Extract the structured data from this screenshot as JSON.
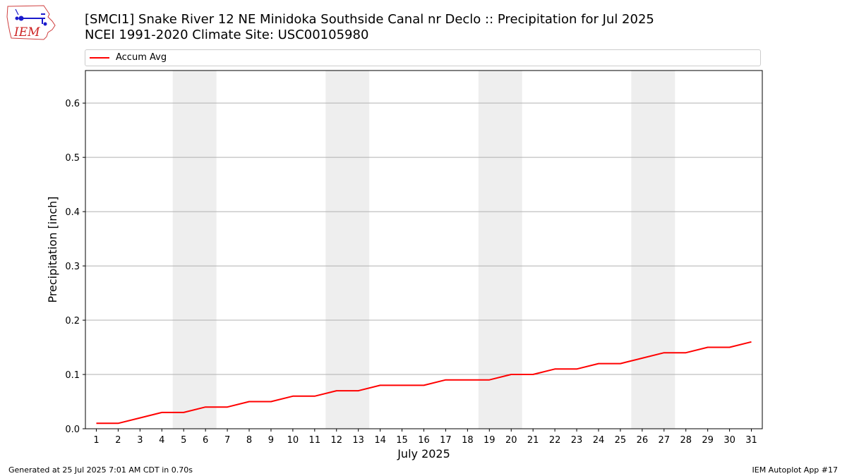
{
  "title_line1": "[SMCI1] Snake River 12 NE Minidoka Southside Canal nr Decl​o :: Precipitation for Jul 2025",
  "title_line2": "NCEI 1991-2020 Climate Site: USC00105980",
  "logo_text": "IEM",
  "footer_left": "Generated at 25 Jul 2025 7:01 AM CDT in 0.70s",
  "footer_right": "IEM Autoplot App #17",
  "colors": {
    "line": "#ff0000",
    "weekend_band": "#eeeeee",
    "grid": "#b0b0b0",
    "logo_outline": "#d04040",
    "logo_text": "#cc2222",
    "logo_icon": "#1a1acc"
  },
  "chart_data": {
    "type": "line",
    "title": "[SMCI1] Snake River 12 NE Minidoka Southside Canal nr Decl​o :: Precipitation for Jul 2025",
    "xlabel": "July 2025",
    "ylabel": "Precipitation [inch]",
    "xlim": [
      0.5,
      31.5
    ],
    "ylim": [
      0,
      0.66
    ],
    "yticks": [
      0.0,
      0.1,
      0.2,
      0.3,
      0.4,
      0.5,
      0.6
    ],
    "ytick_labels": [
      "0.0",
      "0.1",
      "0.2",
      "0.3",
      "0.4",
      "0.5",
      "0.6"
    ],
    "x": [
      1,
      2,
      3,
      4,
      5,
      6,
      7,
      8,
      9,
      10,
      11,
      12,
      13,
      14,
      15,
      16,
      17,
      18,
      19,
      20,
      21,
      22,
      23,
      24,
      25,
      26,
      27,
      28,
      29,
      30,
      31
    ],
    "xtick_labels": [
      "1",
      "2",
      "3",
      "4",
      "5",
      "6",
      "7",
      "8",
      "9",
      "10",
      "11",
      "12",
      "13",
      "14",
      "15",
      "16",
      "17",
      "18",
      "19",
      "20",
      "21",
      "22",
      "23",
      "24",
      "25",
      "26",
      "27",
      "28",
      "29",
      "30",
      "31"
    ],
    "grid": "horizontal",
    "legend_position": "top",
    "weekend_shading": [
      [
        5,
        6
      ],
      [
        12,
        13
      ],
      [
        19,
        20
      ],
      [
        26,
        27
      ]
    ],
    "series": [
      {
        "name": "Accum Avg",
        "color": "#ff0000",
        "values": [
          0.01,
          0.01,
          0.02,
          0.03,
          0.03,
          0.04,
          0.04,
          0.05,
          0.05,
          0.06,
          0.06,
          0.07,
          0.07,
          0.08,
          0.08,
          0.08,
          0.09,
          0.09,
          0.09,
          0.1,
          0.1,
          0.11,
          0.11,
          0.12,
          0.12,
          0.13,
          0.14,
          0.14,
          0.15,
          0.15,
          0.16
        ]
      }
    ]
  }
}
